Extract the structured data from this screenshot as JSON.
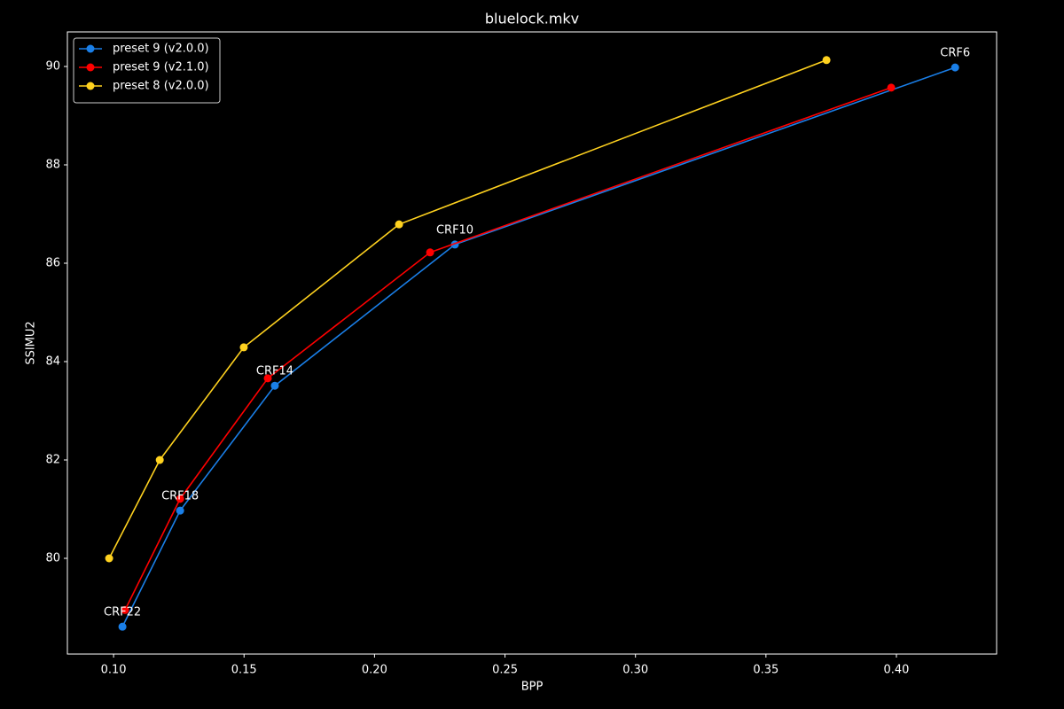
{
  "chart_data": {
    "type": "line",
    "title": "bluelock.mkv",
    "x_label": "BPP",
    "y_label": "SSIMU2",
    "xlim": [
      0.0823,
      0.4384
    ],
    "ylim": [
      78.054,
      90.703
    ],
    "xticks": [
      {
        "value": 0.1,
        "label": "0.10"
      },
      {
        "value": 0.15,
        "label": "0.15"
      },
      {
        "value": 0.2,
        "label": "0.20"
      },
      {
        "value": 0.25,
        "label": "0.25"
      },
      {
        "value": 0.3,
        "label": "0.30"
      },
      {
        "value": 0.35,
        "label": "0.35"
      },
      {
        "value": 0.4,
        "label": "0.40"
      }
    ],
    "yticks": [
      80,
      82,
      84,
      86,
      88,
      90
    ],
    "grid": false,
    "legend": "upper-left",
    "series": [
      {
        "name": "preset 9 (v2.0.0)",
        "color": "#1a7fe8",
        "x": [
          0.1034,
          0.1255,
          0.1618,
          0.2308,
          0.4225
        ],
        "values": [
          78.61,
          80.97,
          83.51,
          86.38,
          89.98
        ]
      },
      {
        "name": "preset 9 (v2.1.0)",
        "color": "#ff0000",
        "x": [
          0.1044,
          0.1255,
          0.1591,
          0.2213,
          0.398
        ],
        "values": [
          78.95,
          81.21,
          83.66,
          86.22,
          89.57
        ]
      },
      {
        "name": "preset 8 (v2.0.0)",
        "color": "#ffd21f",
        "x": [
          0.0983,
          0.1177,
          0.1499,
          0.2094,
          0.3732
        ],
        "values": [
          80.0,
          82.0,
          84.29,
          86.79,
          90.13
        ]
      }
    ],
    "annotations": [
      "CRF22",
      "CRF18",
      "CRF14",
      "CRF10",
      "CRF6"
    ]
  }
}
